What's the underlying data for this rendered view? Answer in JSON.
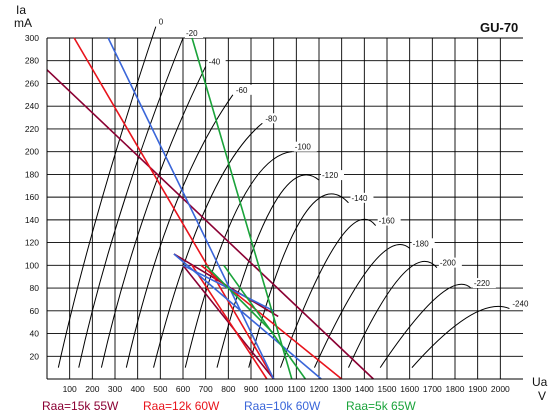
{
  "chart_data": {
    "type": "line",
    "title": "GU-70",
    "xlabel": [
      "Ua",
      "V"
    ],
    "ylabel": [
      "Ia",
      "mA"
    ],
    "xlim": [
      0,
      2100
    ],
    "ylim": [
      0,
      300
    ],
    "x_ticks": [
      100,
      200,
      300,
      400,
      500,
      600,
      700,
      800,
      900,
      1000,
      1100,
      1200,
      1300,
      1400,
      1500,
      1600,
      1700,
      1800,
      1900,
      2000
    ],
    "y_ticks": [
      20,
      40,
      60,
      80,
      100,
      120,
      140,
      160,
      180,
      200,
      220,
      240,
      260,
      280,
      300
    ],
    "grid": true,
    "grid_curves": [
      {
        "label": "0",
        "points": [
          [
            50,
            10
          ],
          [
            230,
            150
          ],
          [
            480,
            310
          ]
        ]
      },
      {
        "label": "-20",
        "points": [
          [
            140,
            10
          ],
          [
            330,
            150
          ],
          [
            600,
            300
          ]
        ]
      },
      {
        "label": "-40",
        "points": [
          [
            240,
            10
          ],
          [
            440,
            150
          ],
          [
            700,
            275
          ]
        ]
      },
      {
        "label": "-60",
        "points": [
          [
            350,
            10
          ],
          [
            560,
            150
          ],
          [
            820,
            250
          ]
        ]
      },
      {
        "label": "-80",
        "points": [
          [
            470,
            10
          ],
          [
            700,
            150
          ],
          [
            950,
            225
          ]
        ]
      },
      {
        "label": "-100",
        "points": [
          [
            610,
            10
          ],
          [
            840,
            150
          ],
          [
            1080,
            200
          ]
        ]
      },
      {
        "label": "-120",
        "points": [
          [
            750,
            10
          ],
          [
            990,
            150
          ],
          [
            1200,
            175
          ]
        ]
      },
      {
        "label": "-140",
        "points": [
          [
            890,
            10
          ],
          [
            1120,
            140
          ],
          [
            1330,
            155
          ]
        ]
      },
      {
        "label": "-160",
        "points": [
          [
            1030,
            10
          ],
          [
            1280,
            120
          ],
          [
            1450,
            135
          ]
        ]
      },
      {
        "label": "-180",
        "points": [
          [
            1180,
            10
          ],
          [
            1430,
            100
          ],
          [
            1600,
            115
          ]
        ]
      },
      {
        "label": "-200",
        "points": [
          [
            1330,
            10
          ],
          [
            1560,
            90
          ],
          [
            1720,
            98
          ]
        ]
      },
      {
        "label": "-220",
        "points": [
          [
            1470,
            10
          ],
          [
            1720,
            72
          ],
          [
            1870,
            80
          ]
        ]
      },
      {
        "label": "-240",
        "points": [
          [
            1610,
            10
          ],
          [
            1860,
            55
          ],
          [
            2040,
            62
          ]
        ]
      }
    ],
    "series": [
      {
        "name": "Raa=15k  55W",
        "color": "#8b0033",
        "lines": [
          [
            [
              0,
              272
            ],
            [
              1440,
              0
            ]
          ],
          [
            [
              600,
              100
            ],
            [
              1000,
              0
            ]
          ],
          [
            [
              560,
              110
            ],
            [
              1020,
              55
            ]
          ]
        ]
      },
      {
        "name": "Raa=12k  60W",
        "color": "#e8141c",
        "lines": [
          [
            [
              120,
              300
            ],
            [
              1000,
              0
            ]
          ],
          [
            [
              680,
              100
            ],
            [
              1300,
              0
            ]
          ],
          [
            [
              640,
              100
            ],
            [
              970,
              0
            ]
          ]
        ]
      },
      {
        "name": "Raa=10k  60W",
        "color": "#3a66d9",
        "lines": [
          [
            [
              270,
              300
            ],
            [
              1000,
              0
            ]
          ],
          [
            [
              560,
              110
            ],
            [
              1210,
              0
            ]
          ],
          [
            [
              600,
              100
            ],
            [
              1000,
              60
            ]
          ]
        ]
      },
      {
        "name": "Raa=5k  65W",
        "color": "#1aa33a",
        "lines": [
          [
            [
              640,
              300
            ],
            [
              1080,
              0
            ]
          ],
          [
            [
              780,
              100
            ],
            [
              1140,
              0
            ]
          ],
          [
            [
              700,
              100
            ],
            [
              1000,
              40
            ]
          ]
        ]
      }
    ]
  }
}
